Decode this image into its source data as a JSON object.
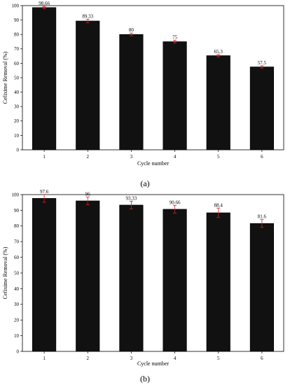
{
  "chart_data": [
    {
      "type": "bar",
      "panel_label": "(a)",
      "categories": [
        "1",
        "2",
        "3",
        "4",
        "5",
        "6"
      ],
      "values": [
        98.66,
        89.33,
        80,
        75,
        65.3,
        57.5
      ],
      "value_labels": [
        "98.66",
        "89.33",
        "80",
        "75",
        "65.3",
        "57.5"
      ],
      "errors": [
        0.8,
        1.2,
        1.0,
        1.0,
        0.8,
        0.8
      ],
      "xlabel": "Cycle number",
      "ylabel": "Cefixime Removal (%)",
      "ylim": [
        0,
        100
      ],
      "yticks": [
        0,
        10,
        20,
        30,
        40,
        50,
        60,
        70,
        80,
        90,
        100
      ],
      "bar_color": "#111111",
      "error_color": "#d62020",
      "grid": false
    },
    {
      "type": "bar",
      "panel_label": "(b)",
      "categories": [
        "1",
        "2",
        "3",
        "4",
        "5",
        "6"
      ],
      "values": [
        97.6,
        96,
        93.33,
        90.66,
        88.4,
        81.6
      ],
      "value_labels": [
        "97.6",
        "96",
        "93.33",
        "90.66",
        "88.4",
        "81.6"
      ],
      "errors": [
        2.5,
        2.5,
        2.5,
        2.5,
        3.0,
        2.5
      ],
      "xlabel": "Cycle number",
      "ylabel": "Cefixime Removal (%)",
      "ylim": [
        0,
        100
      ],
      "yticks": [
        0,
        10,
        20,
        30,
        40,
        50,
        60,
        70,
        80,
        90,
        100
      ],
      "bar_color": "#111111",
      "error_color": "#d62020",
      "grid": false
    }
  ]
}
